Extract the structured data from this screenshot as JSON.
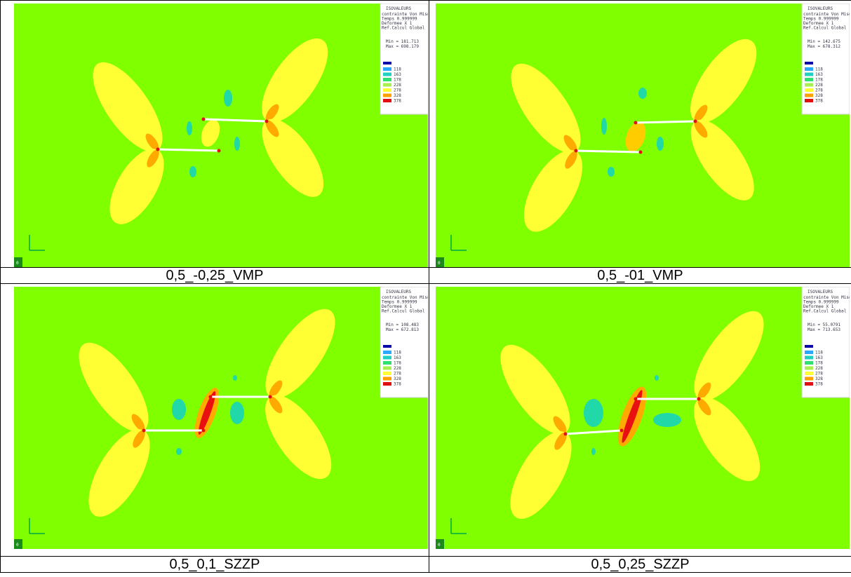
{
  "cells": [
    {
      "caption": "0,5_-0,25_VMP",
      "corner": "0",
      "legend": {
        "title": "ISOVALEURS",
        "lines": [
          "contrainte Von Mises",
          "Temps 0.999999",
          "Deformee X 1",
          "Ref.Calcul Global"
        ],
        "min": "Min = 181.713",
        "max": "Max = 698.179",
        "levels": [
          "118",
          "163",
          "178",
          "228",
          "278",
          "328",
          "378"
        ]
      }
    },
    {
      "caption": "0,5_-01_VMP",
      "corner": "0",
      "legend": {
        "title": "ISOVALEURS",
        "lines": [
          "contrainte Von Mises",
          "Temps 0.999999",
          "Deformee X 1",
          "Ref.Calcul Global"
        ],
        "min": "Min = 142.675",
        "max": "Max = 678.312",
        "levels": [
          "118",
          "163",
          "178",
          "228",
          "278",
          "328",
          "378"
        ]
      }
    },
    {
      "caption": "0,5_0,1_SZZP",
      "corner": "0",
      "legend": {
        "title": "ISOVALEURS",
        "lines": [
          "contrainte Von Mises",
          "Temps 0.999999",
          "Deformee X 1",
          "Ref.Calcul Global"
        ],
        "min": "Min = 108.483",
        "max": "Max = 672.813",
        "levels": [
          "118",
          "163",
          "178",
          "228",
          "278",
          "328",
          "378"
        ]
      }
    },
    {
      "caption": "0,5_0,25_SZZP",
      "corner": "0",
      "legend": {
        "title": "ISOVALEURS",
        "lines": [
          "contrainte Von Mises",
          "Temps 0.999999",
          "Deformee X 1",
          "Ref.Calcul Global"
        ],
        "min": "Min = 55.0791",
        "max": "Max = 713.653",
        "levels": [
          "118",
          "163",
          "178",
          "228",
          "278",
          "328",
          "378"
        ]
      }
    }
  ]
}
